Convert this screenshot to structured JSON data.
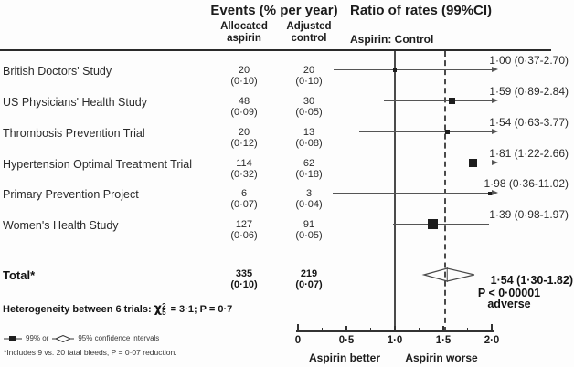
{
  "header": {
    "events_title": "Events (% per year)",
    "ratio_title": "Ratio of rates (99%CI)",
    "col_aspirin": "Allocated\naspirin",
    "col_control": "Adjusted\ncontrol",
    "ratio_subtitle": "Aspirin: Control"
  },
  "chart_data": {
    "type": "forest",
    "title": "Ratio of rates (99%CI), Aspirin: Control",
    "x_axis": {
      "min": 0,
      "max": 2,
      "major_ticks": [
        0,
        0.5,
        1.0,
        1.5,
        2.0
      ],
      "tick_labels": [
        "0",
        "0·5",
        "1·0",
        "1·5",
        "2·0"
      ],
      "minor_ticks": [
        0.25,
        0.75,
        1.25,
        1.75
      ],
      "left_label": "Aspirin better",
      "right_label": "Aspirin worse"
    },
    "reference_line": 1.0,
    "dashed_line": 1.54,
    "studies": [
      {
        "name": "British Doctors' Study",
        "aspirin_events": "20",
        "aspirin_rate": "0·10",
        "control_events": "20",
        "control_rate": "0·10",
        "ratio": 1.0,
        "ci_low": 0.37,
        "ci_high": 2.7,
        "label": "1·00 (0·37-2.70)",
        "marker_px": 4
      },
      {
        "name": "US Physicians' Health Study",
        "aspirin_events": "48",
        "aspirin_rate": "0·09",
        "control_events": "30",
        "control_rate": "0·05",
        "ratio": 1.59,
        "ci_low": 0.89,
        "ci_high": 2.84,
        "label": "1·59 (0·89-2.84)",
        "marker_px": 7
      },
      {
        "name": "Thrombosis Prevention Trial",
        "aspirin_events": "20",
        "aspirin_rate": "0·12",
        "control_events": "13",
        "control_rate": "0·08",
        "ratio": 1.54,
        "ci_low": 0.63,
        "ci_high": 3.77,
        "label": "1·54 (0·63-3.77)",
        "marker_px": 5
      },
      {
        "name": "Hypertension Optimal Treatment Trial",
        "aspirin_events": "114",
        "aspirin_rate": "0·32",
        "control_events": "62",
        "control_rate": "0·18",
        "ratio": 1.81,
        "ci_low": 1.22,
        "ci_high": 2.66,
        "label": "1·81 (1·22-2.66)",
        "marker_px": 9
      },
      {
        "name": "Primary Prevention Project",
        "aspirin_events": "6",
        "aspirin_rate": "0·07",
        "control_events": "3",
        "control_rate": "0·04",
        "ratio": 1.98,
        "ci_low": 0.36,
        "ci_high": 11.02,
        "label": "1·98 (0·36-11.02)",
        "marker_px": 4
      },
      {
        "name": "Women's Health Study",
        "aspirin_events": "127",
        "aspirin_rate": "0·06",
        "control_events": "91",
        "control_rate": "0·05",
        "ratio": 1.39,
        "ci_low": 0.98,
        "ci_high": 1.97,
        "label": "1·39 (0·98-1.97)",
        "marker_px": 11
      }
    ],
    "total": {
      "name": "Total*",
      "aspirin_events": "335",
      "aspirin_rate": "0·10",
      "control_events": "219",
      "control_rate": "0·07",
      "ratio": 1.54,
      "ci_low": 1.3,
      "ci_high": 1.82,
      "label": "1·54 (1·30-1.82)",
      "p_value": "P < 0·00001",
      "direction": "adverse"
    }
  },
  "heterogeneity": {
    "prefix": "Heterogeneity between 6 trials:",
    "chi_symbol": "χ",
    "sup": "2",
    "sub": "5",
    "result": "= 3·1; P = 0·7"
  },
  "legend": {
    "label_99": "99% or",
    "label_95": "95% confidence intervals"
  },
  "footnote": "*Includes 9 vs. 20 fatal bleeds, P = 0·07 reduction."
}
